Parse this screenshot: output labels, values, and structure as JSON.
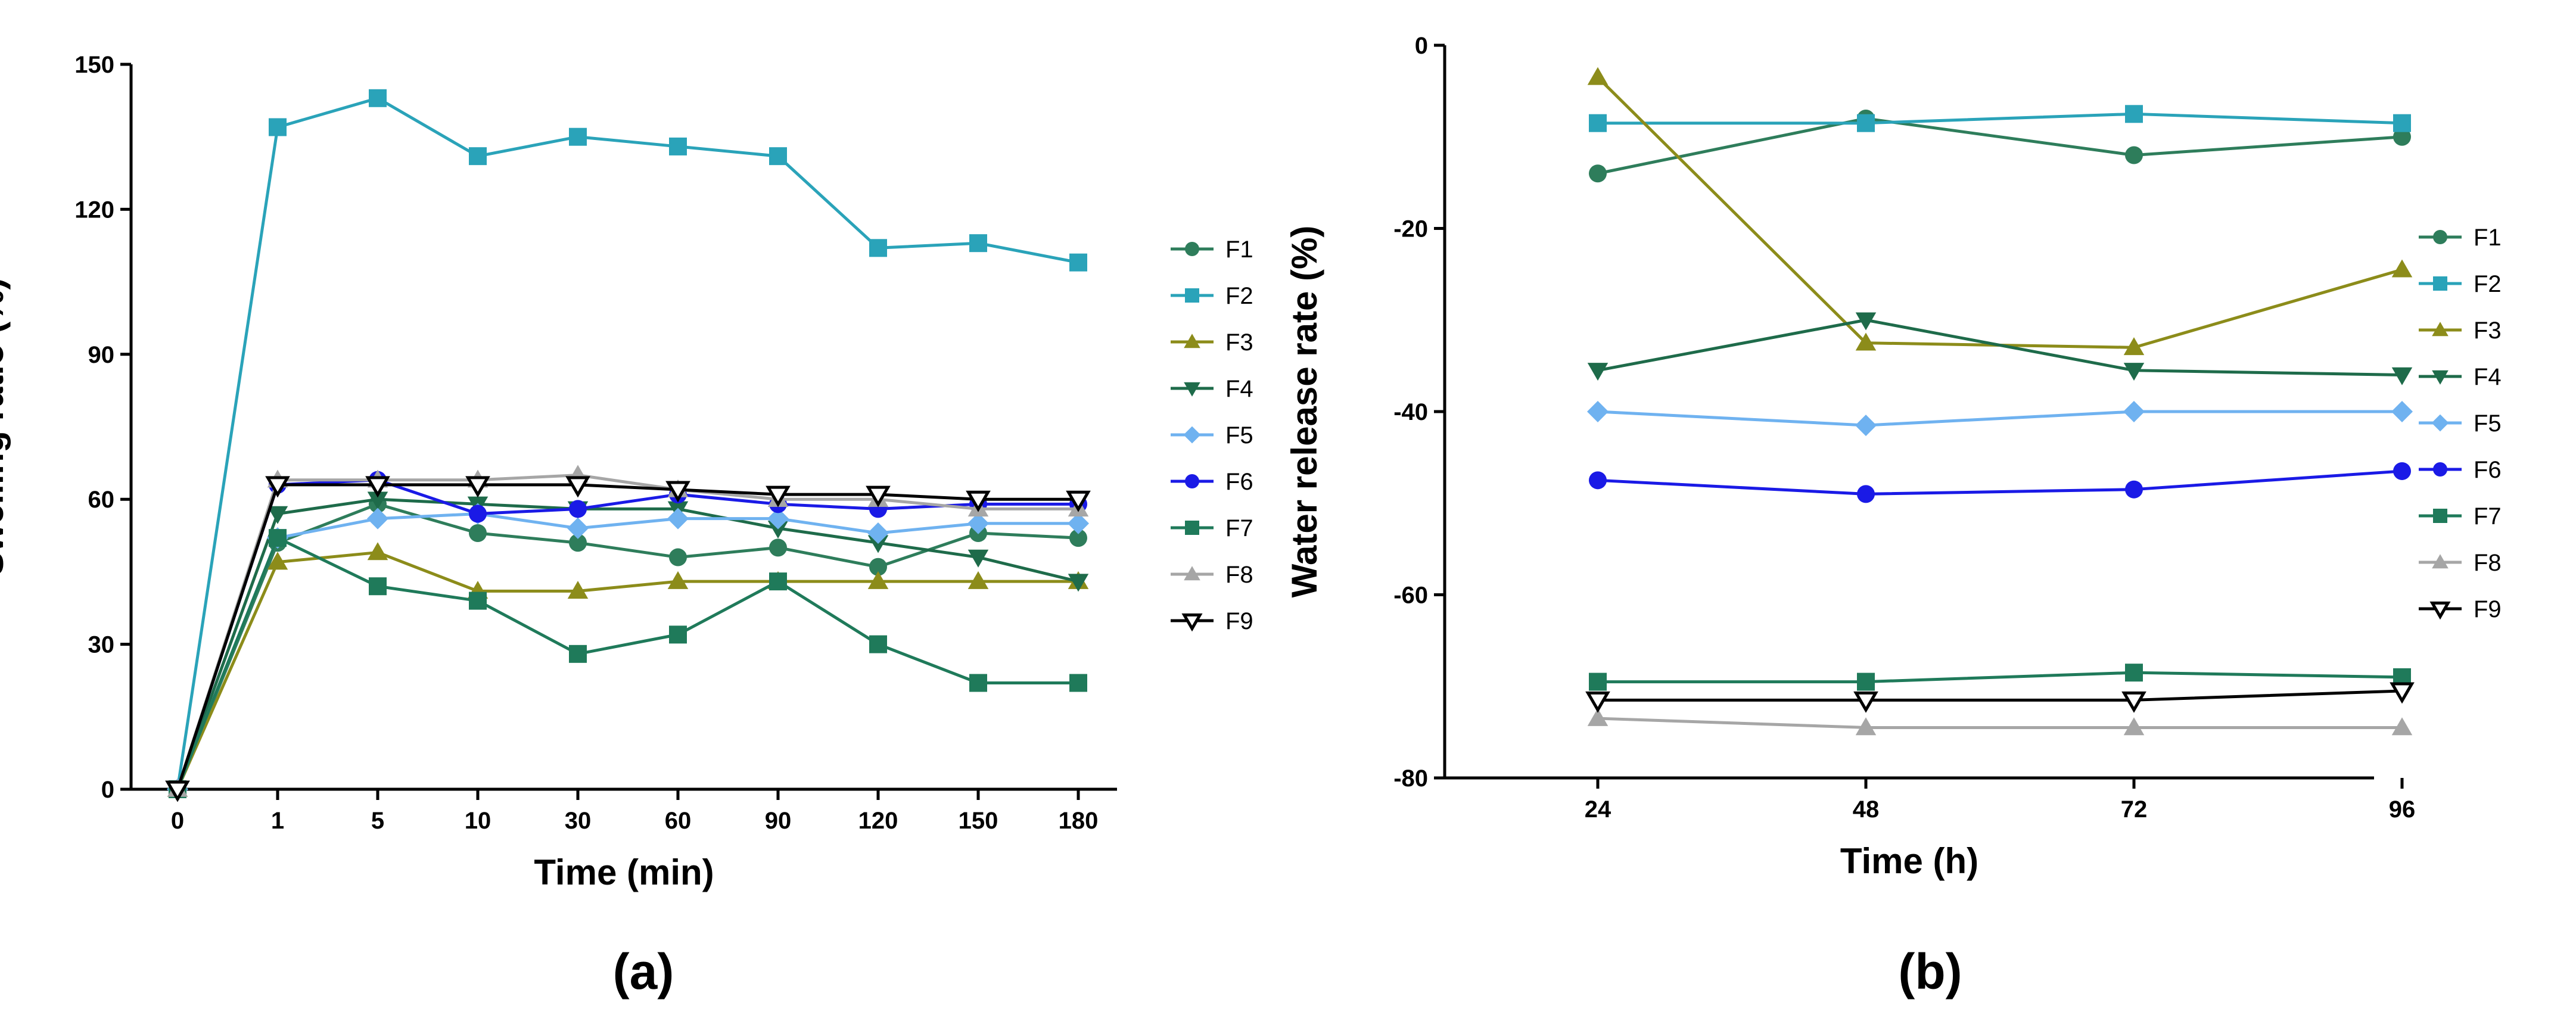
{
  "chart_data": [
    {
      "type": "line",
      "panel_label": "(a)",
      "xlabel": "Time (min)",
      "ylabel": "Swelling ratio (%)",
      "categories": [
        "0",
        "1",
        "5",
        "10",
        "30",
        "60",
        "90",
        "120",
        "150",
        "180"
      ],
      "ylim": [
        0,
        150
      ],
      "yticks": [
        0,
        30,
        60,
        90,
        120,
        150
      ],
      "grid": false,
      "legend": "right",
      "series": [
        {
          "name": "F1",
          "values": [
            0,
            51,
            59,
            53,
            51,
            48,
            50,
            46,
            53,
            52
          ],
          "color": "#2e7d5b",
          "marker": "circle"
        },
        {
          "name": "F2",
          "values": [
            0,
            137,
            143,
            131,
            135,
            133,
            131,
            112,
            113,
            109
          ],
          "color": "#2aa3b9",
          "marker": "square"
        },
        {
          "name": "F3",
          "values": [
            0,
            47,
            49,
            41,
            41,
            43,
            43,
            43,
            43,
            43
          ],
          "color": "#8c8c1a",
          "marker": "triangle-up"
        },
        {
          "name": "F4",
          "values": [
            0,
            57,
            60,
            59,
            58,
            58,
            54,
            51,
            48,
            43
          ],
          "color": "#1e6b4a",
          "marker": "triangle-down"
        },
        {
          "name": "F5",
          "values": [
            0,
            52,
            56,
            57,
            54,
            56,
            56,
            53,
            55,
            55
          ],
          "color": "#6fb2f0",
          "marker": "diamond"
        },
        {
          "name": "F6",
          "values": [
            0,
            63,
            64,
            57,
            58,
            61,
            59,
            58,
            59,
            59
          ],
          "color": "#1a1ae6",
          "marker": "circle"
        },
        {
          "name": "F7",
          "values": [
            0,
            52,
            42,
            39,
            28,
            32,
            43,
            30,
            22,
            22
          ],
          "color": "#1f7a5a",
          "marker": "square"
        },
        {
          "name": "F8",
          "values": [
            0,
            64,
            64,
            64,
            65,
            62,
            60,
            60,
            58,
            58
          ],
          "color": "#a6a6a6",
          "marker": "triangle-up"
        },
        {
          "name": "F9",
          "values": [
            0,
            63,
            63,
            63,
            63,
            62,
            61,
            61,
            60,
            60
          ],
          "color": "#000000",
          "marker": "triangle-down-open"
        }
      ]
    },
    {
      "type": "line",
      "panel_label": "(b)",
      "xlabel": "Time (h)",
      "ylabel": "Water release rate (%)",
      "categories": [
        "24",
        "48",
        "72",
        "96"
      ],
      "ylim": [
        -80,
        0
      ],
      "yticks": [
        -80,
        -60,
        -40,
        -20,
        0
      ],
      "grid": false,
      "legend": "right",
      "series": [
        {
          "name": "F1",
          "values": [
            -14,
            -8,
            -12,
            -10
          ],
          "color": "#2e7d5b",
          "marker": "circle"
        },
        {
          "name": "F2",
          "values": [
            -8.5,
            -8.5,
            -7.5,
            -8.5
          ],
          "color": "#2aa3b9",
          "marker": "square"
        },
        {
          "name": "F3",
          "values": [
            -3.5,
            -32.5,
            -33,
            -24.5
          ],
          "color": "#8c8c1a",
          "marker": "triangle-up"
        },
        {
          "name": "F4",
          "values": [
            -35.5,
            -30,
            -35.5,
            -36
          ],
          "color": "#1e6b4a",
          "marker": "triangle-down"
        },
        {
          "name": "F5",
          "values": [
            -40,
            -41.5,
            -40,
            -40
          ],
          "color": "#6fb2f0",
          "marker": "diamond"
        },
        {
          "name": "F6",
          "values": [
            -47.5,
            -49,
            -48.5,
            -46.5
          ],
          "color": "#1a1ae6",
          "marker": "circle"
        },
        {
          "name": "F7",
          "values": [
            -69.5,
            -69.5,
            -68.5,
            -69
          ],
          "color": "#1f7a5a",
          "marker": "square"
        },
        {
          "name": "F8",
          "values": [
            -73.5,
            -74.5,
            -74.5,
            -74.5
          ],
          "color": "#a6a6a6",
          "marker": "triangle-up"
        },
        {
          "name": "F9",
          "values": [
            -71.5,
            -71.5,
            -71.5,
            -70.5
          ],
          "color": "#000000",
          "marker": "triangle-down-open"
        }
      ]
    }
  ]
}
